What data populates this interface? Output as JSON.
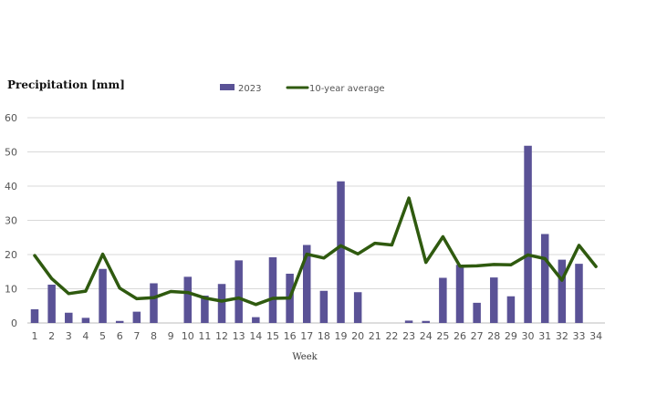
{
  "chart_data": {
    "type": "bar+line",
    "ylabel": "Precipitation [mm]",
    "xlabel": "Week",
    "ylim": [
      0,
      60
    ],
    "yticks": [
      0,
      10,
      20,
      30,
      40,
      50,
      60
    ],
    "grid": true,
    "legend_position": "top-center",
    "categories": [
      "1",
      "2",
      "3",
      "4",
      "5",
      "6",
      "7",
      "8",
      "9",
      "10",
      "11",
      "12",
      "13",
      "14",
      "15",
      "16",
      "17",
      "18",
      "19",
      "20",
      "21",
      "22",
      "23",
      "24",
      "25",
      "26",
      "27",
      "28",
      "29",
      "30",
      "31",
      "32",
      "33",
      "34"
    ],
    "series": [
      {
        "name": "2023",
        "kind": "bar",
        "color": "#5a5296",
        "values": [
          4.0,
          11.2,
          3.0,
          1.5,
          15.8,
          0.6,
          3.3,
          11.6,
          null,
          13.5,
          8.0,
          11.4,
          18.3,
          1.7,
          19.2,
          14.4,
          22.8,
          9.4,
          41.4,
          9.0,
          null,
          null,
          0.7,
          0.6,
          13.2,
          17.0,
          5.9,
          13.3,
          7.8,
          51.8,
          26.0,
          18.5,
          17.3,
          null
        ]
      },
      {
        "name": "10-year average",
        "kind": "line",
        "color": "#2f5a0f",
        "values": [
          19.7,
          13.0,
          8.6,
          9.3,
          20.1,
          10.2,
          7.1,
          7.4,
          9.2,
          8.9,
          7.3,
          6.4,
          7.3,
          5.4,
          7.2,
          7.3,
          20.1,
          19.0,
          22.6,
          20.2,
          23.3,
          22.8,
          36.5,
          17.7,
          25.2,
          16.6,
          16.7,
          17.1,
          17.0,
          19.9,
          18.8,
          12.5,
          22.7,
          16.5
        ]
      }
    ]
  }
}
